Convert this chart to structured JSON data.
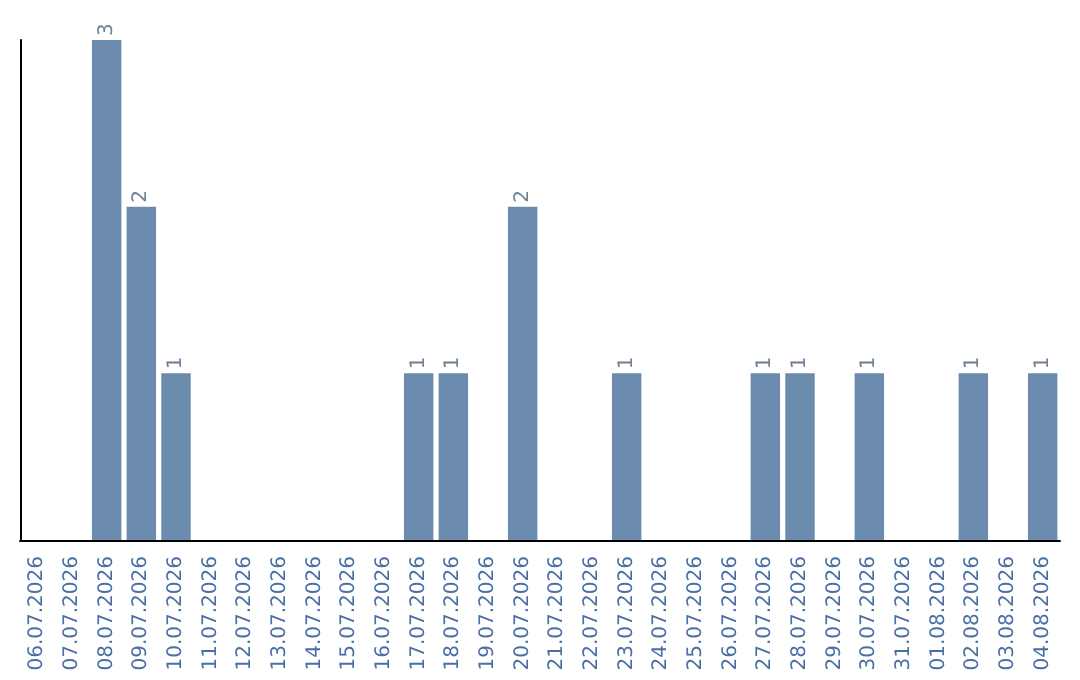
{
  "chart_data": {
    "type": "bar",
    "categories": [
      "06.07.2026",
      "07.07.2026",
      "08.07.2026",
      "09.07.2026",
      "10.07.2026",
      "11.07.2026",
      "12.07.2026",
      "13.07.2026",
      "14.07.2026",
      "15.07.2026",
      "16.07.2026",
      "17.07.2026",
      "18.07.2026",
      "19.07.2026",
      "20.07.2026",
      "21.07.2026",
      "22.07.2026",
      "23.07.2026",
      "24.07.2026",
      "25.07.2026",
      "26.07.2026",
      "27.07.2026",
      "28.07.2026",
      "29.07.2026",
      "30.07.2026",
      "31.07.2026",
      "01.08.2026",
      "02.08.2026",
      "03.08.2026",
      "04.08.2026"
    ],
    "values": [
      0,
      0,
      3,
      2,
      1,
      0,
      0,
      0,
      0,
      0,
      0,
      1,
      1,
      0,
      2,
      0,
      0,
      1,
      0,
      0,
      0,
      1,
      1,
      0,
      1,
      0,
      0,
      1,
      0,
      1
    ],
    "value_labels": [
      null,
      null,
      "3",
      "2",
      "1",
      null,
      null,
      null,
      null,
      null,
      null,
      "1",
      "1",
      null,
      "2",
      null,
      null,
      "1",
      null,
      null,
      null,
      "1",
      "1",
      null,
      "1",
      null,
      null,
      "1",
      null,
      "1"
    ],
    "color": "#6b8cae",
    "ylim": [
      0,
      3
    ],
    "tick_labels": "x"
  }
}
